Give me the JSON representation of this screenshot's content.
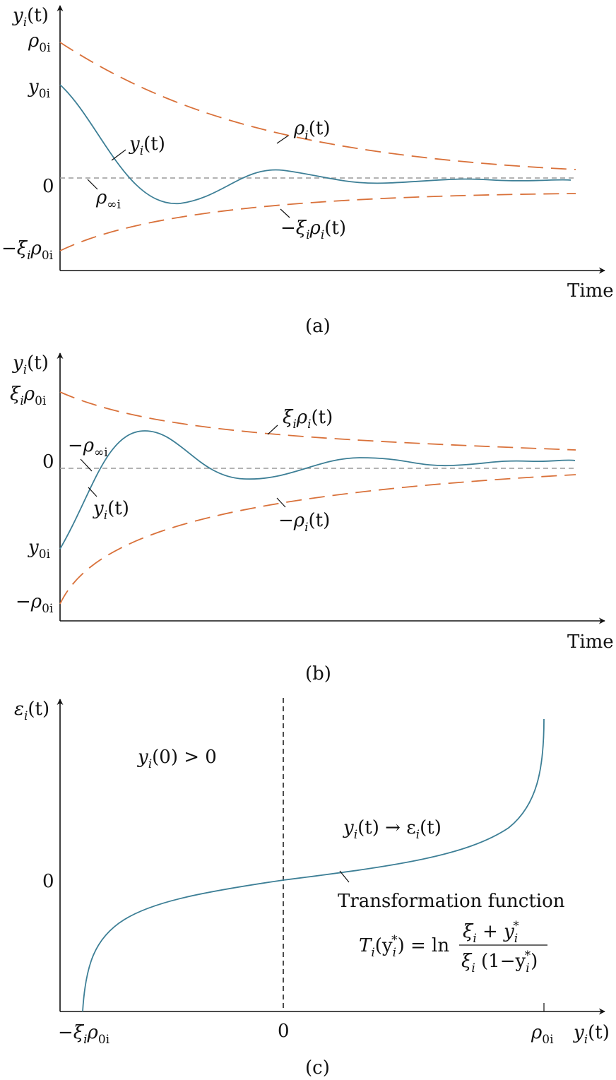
{
  "panel_a": {
    "y_label_var": "y",
    "y_label_sub": "i",
    "y_label_arg": "(t)",
    "tick_rho0_main": "ρ",
    "tick_rho0_sub": "0i",
    "tick_y0_main": "y",
    "tick_y0_sub": "0i",
    "tick_zero": "0",
    "tick_neg_pre": "−ξ",
    "tick_neg_i": "i",
    "tick_neg_rho": "ρ",
    "tick_neg_sub": "0i",
    "x_label": "Time",
    "ann_rho_main": "ρ",
    "ann_rho_sub": "i",
    "ann_rho_arg": "(t)",
    "ann_y_main": "y",
    "ann_y_sub": "i",
    "ann_y_arg": "(t)",
    "ann_rinf_main": "ρ",
    "ann_rinf_sub": "∞i",
    "ann_neg_pre": "−ξ",
    "ann_neg_i": "i",
    "ann_neg_rho": "ρ",
    "ann_neg_sub": "i",
    "ann_neg_arg": "(t)",
    "caption": "(a)"
  },
  "panel_b": {
    "y_label_var": "y",
    "y_label_sub": "i",
    "y_label_arg": "(t)",
    "tick_top_pre": "ξ",
    "tick_top_i": "i",
    "tick_top_rho": "ρ",
    "tick_top_sub": "0i",
    "tick_zero": "0",
    "tick_y0_main": "y",
    "tick_y0_sub": "0i",
    "tick_neg_main": "−ρ",
    "tick_neg_sub": "0i",
    "x_label": "Time",
    "ann_top_pre": "ξ",
    "ann_top_i": "i",
    "ann_top_rho": "ρ",
    "ann_top_sub": "i",
    "ann_top_arg": "(t)",
    "ann_rinf_main": "−ρ",
    "ann_rinf_sub": "∞i",
    "ann_y_main": "y",
    "ann_y_sub": "i",
    "ann_y_arg": "(t)",
    "ann_neg_main": "−ρ",
    "ann_neg_sub": "i",
    "ann_neg_arg": "(t)",
    "caption": "(b)"
  },
  "panel_c": {
    "y_label_var": "ε",
    "y_label_sub": "i",
    "y_label_arg": "(t)",
    "tick_zero_y": "0",
    "cond_var": "y",
    "cond_sub": "i",
    "cond_rest": "(0) > 0",
    "map_var": "y",
    "map_sub": "i",
    "map_mid": "(t) → ε",
    "map_sub2": "i",
    "map_end": "(t)",
    "func_title": "Transformation function",
    "f_T": "T",
    "f_T_sub": "i",
    "f_open": "(y",
    "f_y_sub": "i",
    "f_star": "*",
    "f_close": ") = ln",
    "num_xi": "ξ",
    "num_xi_sub": "i",
    "num_plus": " + y",
    "num_y_sub": "i",
    "num_star": "*",
    "den_xi": "ξ",
    "den_xi_sub": "i",
    "den_open": " (1−y",
    "den_y_sub": "i",
    "den_star": "*",
    "den_close": ")",
    "xtick_left_pre": "−ξ",
    "xtick_left_i": "i",
    "xtick_left_rho": "ρ",
    "xtick_left_sub": "0i",
    "xtick_zero": "0",
    "xtick_right_main": "ρ",
    "xtick_right_sub": "0i",
    "x_label_var": "y",
    "x_label_sub": "i",
    "x_label_arg": "(t)",
    "caption": "(c)"
  },
  "colors": {
    "envelope": "#d9713a",
    "signal": "#3d7f96",
    "reference": "#9a9a9a",
    "axis": "#111111"
  }
}
